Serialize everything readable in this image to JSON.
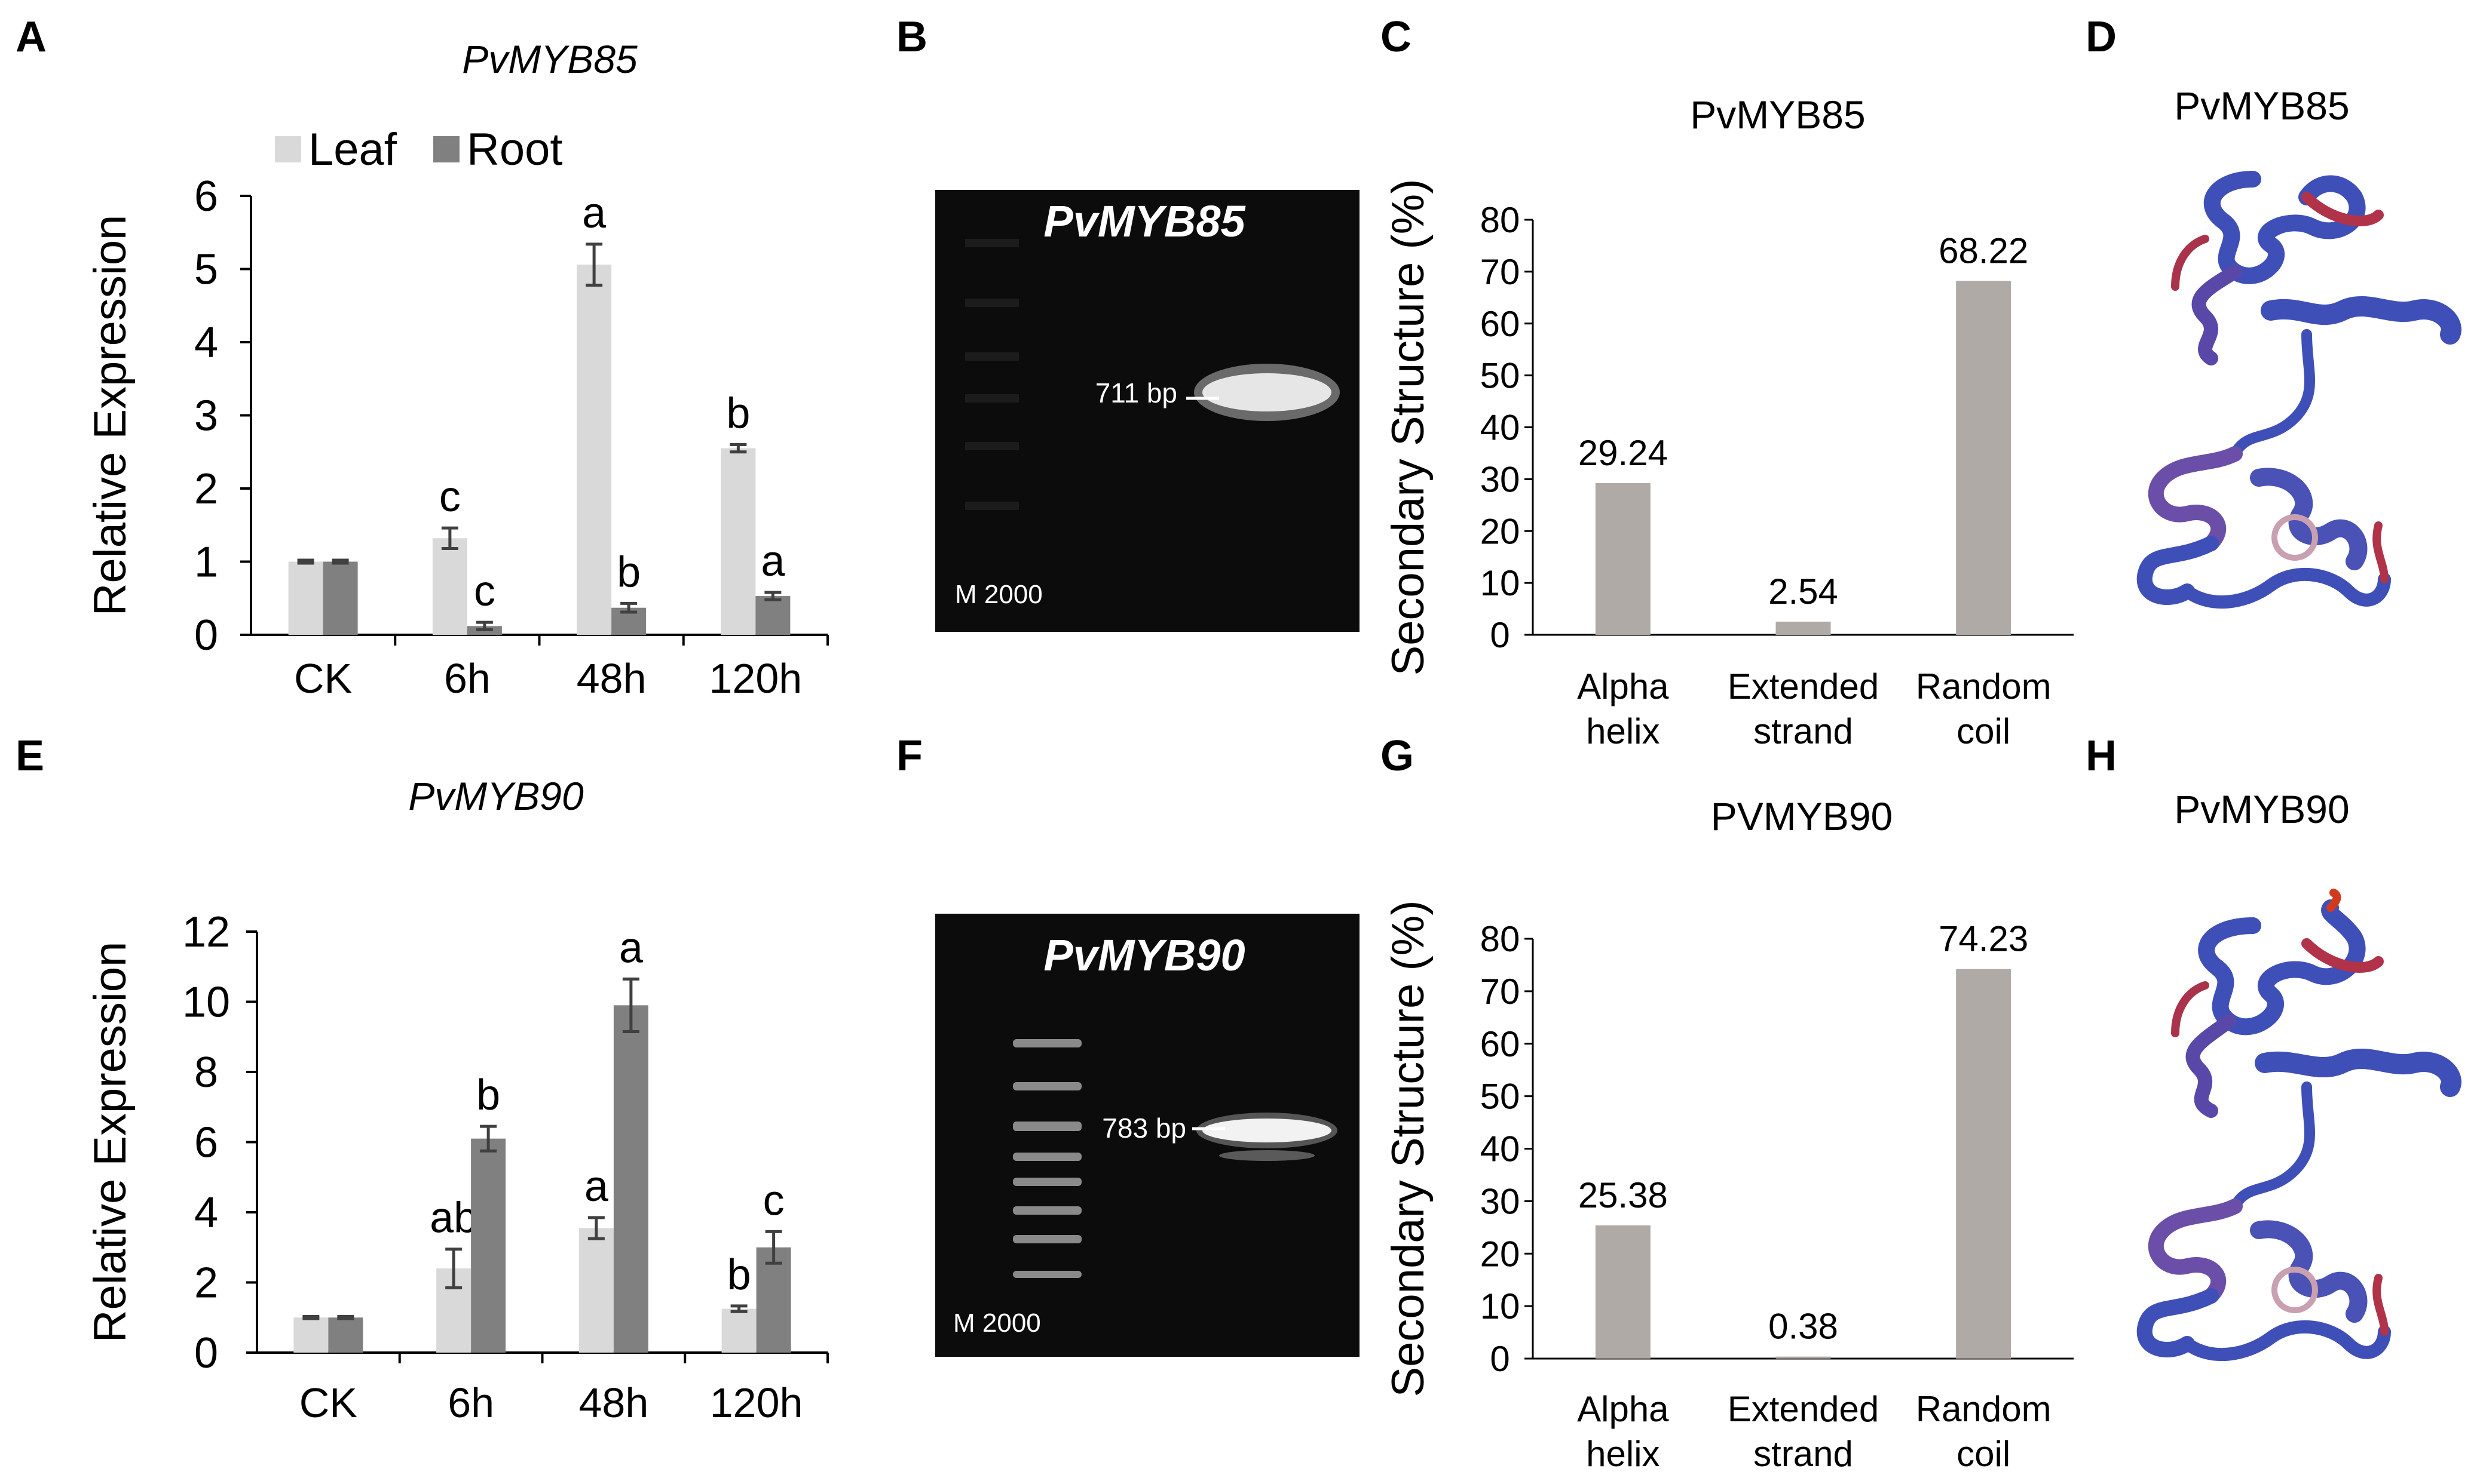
{
  "panel_letters": [
    "A",
    "B",
    "C",
    "D",
    "E",
    "F",
    "G",
    "H"
  ],
  "colors": {
    "leaf": "#d9d9d9",
    "root": "#808080",
    "structure_bar": "#afaaa6",
    "gel_background": "#0c0c0c",
    "protein_main": "#3f4fb8",
    "protein_accent": "#b0334a"
  },
  "gels": {
    "top": {
      "title": "PvMYB85",
      "band_label": "711 bp",
      "marker_label": "M 2000"
    },
    "bottom": {
      "title": "PvMYB90",
      "band_label": "783 bp",
      "marker_label": "M 2000"
    }
  },
  "proteins": {
    "top": {
      "title": "PvMYB85",
      "icon": "protein-ribbon-structure"
    },
    "bottom": {
      "title": "PvMYB90",
      "icon": "protein-ribbon-structure"
    }
  },
  "chart_data": [
    {
      "id": "A",
      "type": "bar",
      "title": "PvMYB85",
      "ylabel": "Relative Expression",
      "xlabel": "",
      "ylim": [
        0,
        6
      ],
      "yticks": [
        0,
        1,
        2,
        3,
        4,
        5,
        6
      ],
      "categories": [
        "CK",
        "6h",
        "48h",
        "120h"
      ],
      "legend": "top",
      "series": [
        {
          "name": "Leaf",
          "values": [
            1.0,
            1.32,
            5.06,
            2.55
          ],
          "errors": [
            0.02,
            0.14,
            0.28,
            0.05
          ],
          "letters": [
            "",
            "c",
            "a",
            "b"
          ]
        },
        {
          "name": "Root",
          "values": [
            1.0,
            0.12,
            0.37,
            0.53
          ],
          "errors": [
            0.02,
            0.05,
            0.06,
            0.05
          ],
          "letters": [
            "",
            "c",
            "b",
            "a"
          ]
        }
      ]
    },
    {
      "id": "C",
      "type": "bar",
      "title": "PvMYB85",
      "ylabel": "Secondary Structure (%)",
      "xlabel": "",
      "ylim": [
        0,
        80
      ],
      "yticks": [
        0,
        10,
        20,
        30,
        40,
        50,
        60,
        70,
        80
      ],
      "categories": [
        [
          "Alpha",
          "helix"
        ],
        [
          "Extended",
          "strand"
        ],
        [
          "Random",
          "coil"
        ]
      ],
      "values": [
        29.24,
        2.54,
        68.22
      ],
      "data_labels": [
        "29.24",
        "2.54",
        "68.22"
      ]
    },
    {
      "id": "E",
      "type": "bar",
      "title": "PvMYB90",
      "ylabel": "Relative Expression",
      "xlabel": "",
      "ylim": [
        0,
        12
      ],
      "yticks": [
        0,
        2,
        4,
        6,
        8,
        10,
        12
      ],
      "categories": [
        "CK",
        "6h",
        "48h",
        "120h"
      ],
      "series": [
        {
          "name": "Leaf",
          "values": [
            1.0,
            2.4,
            3.55,
            1.25
          ],
          "errors": [
            0.03,
            0.55,
            0.3,
            0.08
          ],
          "letters": [
            "",
            "ab",
            "a",
            "b"
          ]
        },
        {
          "name": "Root",
          "values": [
            1.0,
            6.1,
            9.9,
            3.0
          ],
          "errors": [
            0.03,
            0.35,
            0.75,
            0.45
          ],
          "letters": [
            "",
            "b",
            "a",
            "c"
          ]
        }
      ]
    },
    {
      "id": "G",
      "type": "bar",
      "title": "PVMYB90",
      "ylabel": "Secondary Structure (%)",
      "xlabel": "",
      "ylim": [
        0,
        80
      ],
      "yticks": [
        0,
        10,
        20,
        30,
        40,
        50,
        60,
        70,
        80
      ],
      "categories": [
        [
          "Alpha",
          "helix"
        ],
        [
          "Extended",
          "strand"
        ],
        [
          "Random",
          "coil"
        ]
      ],
      "values": [
        25.38,
        0.38,
        74.23
      ],
      "data_labels": [
        "25.38",
        "0.38",
        "74.23"
      ]
    }
  ]
}
